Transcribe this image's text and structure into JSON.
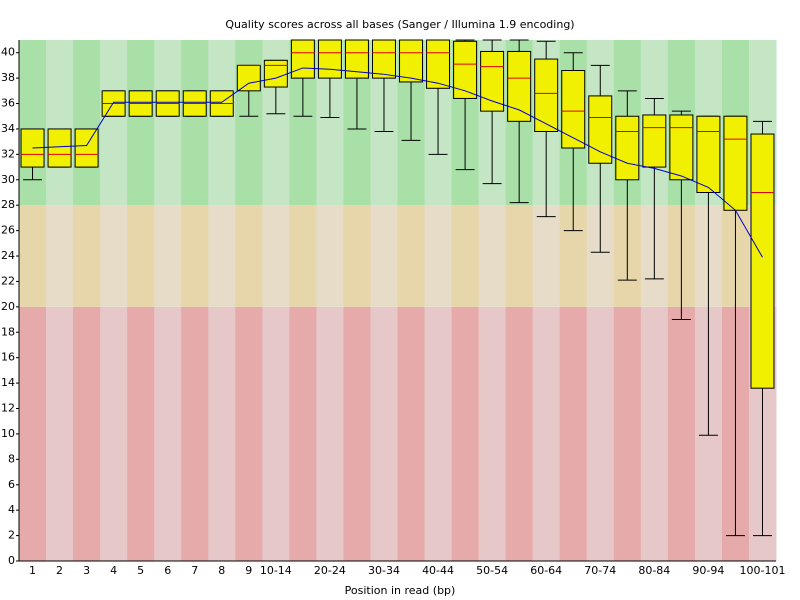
{
  "chart_data": {
    "type": "box",
    "title": "Quality scores across all bases (Sanger / Illumina 1.9 encoding)",
    "x_label": "Position in read (bp)",
    "categories": [
      "1",
      "2",
      "3",
      "4",
      "5",
      "6",
      "7",
      "8",
      "9",
      "10-14",
      null,
      "20-24",
      null,
      "30-34",
      null,
      "40-44",
      null,
      "50-54",
      null,
      "60-64",
      null,
      "70-74",
      null,
      "80-84",
      null,
      "90-94",
      null,
      "100-101"
    ],
    "whisker_low": [
      30,
      31,
      31,
      35,
      35,
      35,
      35,
      35,
      35,
      35.2,
      35,
      34.9,
      34,
      33.8,
      33.1,
      32,
      30.8,
      29.7,
      28.2,
      27.1,
      26,
      24.3,
      22.1,
      22.2,
      19,
      9.9,
      2,
      2
    ],
    "q1": [
      31,
      31,
      31,
      35,
      35,
      35,
      35,
      35,
      37,
      37.3,
      38,
      38,
      38,
      38,
      37.7,
      37.2,
      36.4,
      35.4,
      34.6,
      33.8,
      32.5,
      31.3,
      30,
      31,
      30,
      29,
      27.6,
      13.6
    ],
    "median": [
      32,
      32,
      32,
      36,
      36,
      36,
      36,
      36,
      39,
      39,
      40,
      40,
      40,
      40,
      40,
      40,
      39.1,
      38.9,
      38,
      36.8,
      35.4,
      34.9,
      33.8,
      34.1,
      34.1,
      33.8,
      33.2,
      29
    ],
    "q3": [
      34,
      34,
      34,
      37,
      37,
      37,
      37,
      37,
      39,
      39.4,
      41,
      41,
      41,
      41,
      41,
      41,
      40.9,
      40.1,
      40.1,
      39.5,
      38.6,
      36.6,
      35,
      35.1,
      35.1,
      35,
      35,
      33.6
    ],
    "whisker_high": [
      34,
      34,
      34,
      37,
      37,
      37,
      37,
      37,
      39,
      39.4,
      41,
      41,
      41,
      41,
      41,
      41,
      41,
      41,
      41,
      40.9,
      40,
      39,
      37,
      36.4,
      35.4,
      35,
      35,
      34.6
    ],
    "mean": [
      32.5,
      32.6,
      32.7,
      36.1,
      36.1,
      36.1,
      36.1,
      36.1,
      37.6,
      38,
      38.8,
      38.7,
      38.5,
      38.3,
      38,
      37.6,
      37,
      36.2,
      35.5,
      34.4,
      33.3,
      32.2,
      31.3,
      30.9,
      30.3,
      29.4,
      27.6,
      23.9
    ],
    "box_color": "#f0f000",
    "median_color": "#e00000",
    "mean_color": "#0000c8",
    "zones": [
      {
        "from": 0,
        "to": 20,
        "colors": [
          "#e6aaaa",
          "#e6c8c8"
        ]
      },
      {
        "from": 20,
        "to": 28,
        "colors": [
          "#e6d6aa",
          "#e6dcc8"
        ]
      },
      {
        "from": 28,
        "to": 41,
        "colors": [
          "#a8e0a8",
          "#c4e6c4"
        ]
      }
    ],
    "ylim": [
      0,
      41
    ],
    "yticks": [
      0,
      2,
      4,
      6,
      8,
      10,
      12,
      14,
      16,
      18,
      20,
      22,
      24,
      26,
      28,
      30,
      32,
      34,
      36,
      38,
      40
    ]
  }
}
